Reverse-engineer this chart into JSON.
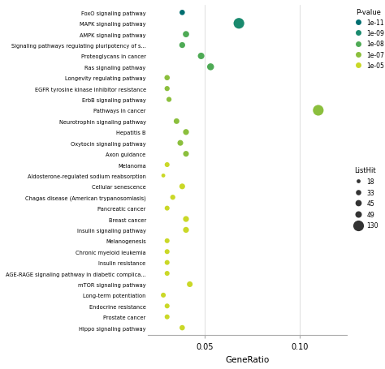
{
  "pathways": [
    "FoxO signaling pathway",
    "MAPK signaling pathway",
    "AMPK signaling pathway",
    "Signaling pathways regulating pluripotency of s...",
    "Proteoglycans in cancer",
    "Ras signaling pathway",
    "Longevity regulating pathway",
    "EGFR tyrosine kinase inhibitor resistance",
    "ErbB signaling pathway",
    "Pathways in cancer",
    "Neurotrophin signaling pathway",
    "Hepatitis B",
    "Oxytocin signaling pathway",
    "Axon guidance",
    "Melanoma",
    "Aldosterone-regulated sodium reabsorption",
    "Cellular senescence",
    "Chagas disease (American trypanosomiasis)",
    "Pancreatic cancer",
    "Breast cancer",
    "Insulin signaling pathway",
    "Melanogenesis",
    "Chronic myeloid leukemia",
    "Insulin resistance",
    "AGE-RAGE signaling pathway in diabetic complica...",
    "mTOR signaling pathway",
    "Long-term potentiation",
    "Endocrine resistance",
    "Prostate cancer",
    "Hippo signaling pathway"
  ],
  "generatio": [
    0.038,
    0.068,
    0.04,
    0.038,
    0.048,
    0.053,
    0.03,
    0.03,
    0.031,
    0.11,
    0.035,
    0.04,
    0.037,
    0.04,
    0.03,
    0.028,
    0.038,
    0.033,
    0.03,
    0.04,
    0.04,
    0.03,
    0.03,
    0.03,
    0.03,
    0.042,
    0.028,
    0.03,
    0.03,
    0.038
  ],
  "pvalue_raw": [
    1e-11,
    1e-09,
    1e-08,
    1e-08,
    1e-08,
    1e-08,
    1e-07,
    1e-07,
    1e-07,
    1e-07,
    1e-07,
    1e-07,
    1e-07,
    1e-07,
    1e-05,
    1e-05,
    1e-05,
    1e-05,
    1e-05,
    1e-05,
    1e-05,
    1e-05,
    1e-05,
    1e-05,
    1e-05,
    1e-05,
    1e-05,
    1e-05,
    1e-05,
    1e-05
  ],
  "listhit": [
    33,
    130,
    45,
    40,
    49,
    55,
    33,
    30,
    30,
    130,
    37,
    40,
    38,
    38,
    28,
    18,
    38,
    30,
    28,
    40,
    40,
    28,
    28,
    28,
    28,
    38,
    28,
    28,
    28,
    33
  ],
  "color_map": {
    "1e-11": "#006e70",
    "1e-9": "#1a8a6e",
    "1e-8": "#4eaa55",
    "1e-7": "#8bbf3d",
    "1e-5": "#cad827"
  },
  "legend_pval_labels": [
    "1e-11",
    "1e-09",
    "1e-08",
    "1e-07",
    "1e-05"
  ],
  "legend_pval_colors": [
    "#006e70",
    "#1a8a6e",
    "#4eaa55",
    "#8bbf3d",
    "#cad827"
  ],
  "legend_lh_vals": [
    18,
    33,
    45,
    49,
    130
  ],
  "xlabel": "GeneRatio",
  "xlim": [
    0.02,
    0.125
  ],
  "xticks": [
    0.05,
    0.1
  ],
  "size_min": 18,
  "size_max": 130,
  "dot_min": 12,
  "dot_max": 90
}
